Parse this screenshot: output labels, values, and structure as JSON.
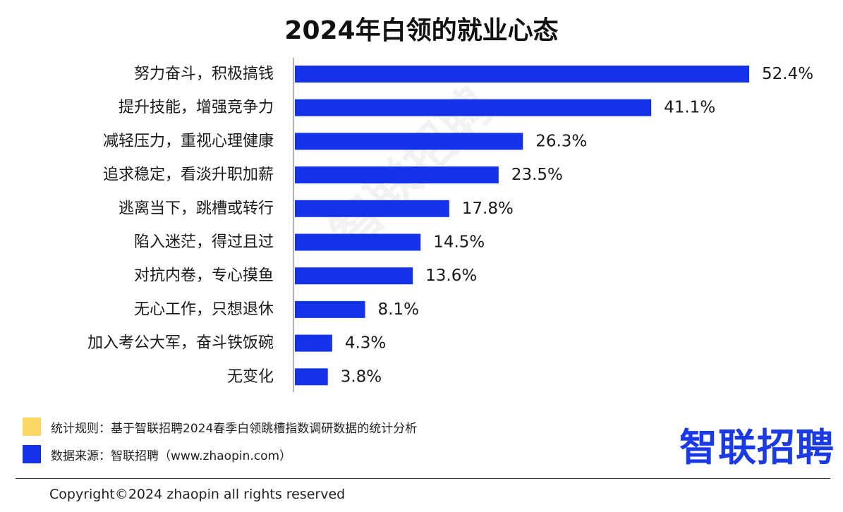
{
  "colors": {
    "bar": "#1432e8",
    "legend_rule": "#fcd567",
    "legend_source": "#1432e8",
    "logo": "#1a3ae6"
  },
  "chart_data": {
    "type": "bar",
    "orientation": "horizontal",
    "title": "2024年白领的就业心态",
    "categories": [
      "努力奋斗，积极搞钱",
      "提升技能，增强竞争力",
      "减轻压力，重视心理健康",
      "追求稳定，看淡升职加薪",
      "逃离当下，跳槽或转行",
      "陷入迷茫，得过且过",
      "对抗内卷，专心摸鱼",
      "无心工作，只想退休",
      "加入考公大军，奋斗铁饭碗",
      "无变化"
    ],
    "values": [
      52.4,
      41.1,
      26.3,
      23.5,
      17.8,
      14.5,
      13.6,
      8.1,
      4.3,
      3.8
    ],
    "value_labels": [
      "52.4%",
      "41.1%",
      "26.3%",
      "23.5%",
      "17.8%",
      "14.5%",
      "13.6%",
      "8.1%",
      "4.3%",
      "3.8%"
    ],
    "xlim": [
      0,
      52.4
    ],
    "grid": false,
    "legend": "none"
  },
  "watermark": "智联招聘",
  "legend": {
    "rule_label": "统计规则：基于智联招聘2024春季白领跳槽指数调研数据的统计分析",
    "source_label": "数据来源：智联招聘（www.zhaopin.com）"
  },
  "logo": {
    "text": "智联招聘"
  },
  "footer": {
    "copyright": "Copyright©2024 zhaopin all rights reserved"
  }
}
